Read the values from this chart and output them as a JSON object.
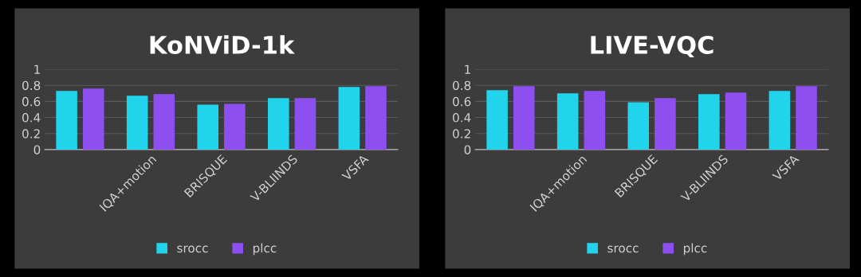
{
  "chart_data": [
    {
      "type": "bar",
      "title": "KoNViD-1k",
      "categories": [
        null,
        "IQA+motion",
        "BRISQUE",
        "V-BLIINDS",
        "VSFA"
      ],
      "series": [
        {
          "name": "srocc",
          "color": "#22d3ec",
          "values": [
            0.73,
            0.67,
            0.56,
            0.64,
            0.78
          ]
        },
        {
          "name": "plcc",
          "color": "#8e4ff0",
          "values": [
            0.76,
            0.69,
            0.57,
            0.64,
            0.79
          ]
        }
      ],
      "ylim": [
        0,
        1
      ],
      "yticks": [
        0,
        0.2,
        0.4,
        0.6,
        0.8,
        1
      ],
      "grid": "y",
      "legend": "bottom"
    },
    {
      "type": "bar",
      "title": "LIVE-VQC",
      "categories": [
        null,
        "IQA+motion",
        "BRISQUE",
        "V-BLIINDS",
        "VSFA"
      ],
      "series": [
        {
          "name": "srocc",
          "color": "#22d3ec",
          "values": [
            0.74,
            0.7,
            0.59,
            0.69,
            0.73
          ]
        },
        {
          "name": "plcc",
          "color": "#8e4ff0",
          "values": [
            0.79,
            0.73,
            0.64,
            0.71,
            0.79
          ]
        }
      ],
      "ylim": [
        0,
        1
      ],
      "yticks": [
        0,
        0.2,
        0.4,
        0.6,
        0.8,
        1
      ],
      "grid": "y",
      "legend": "bottom"
    }
  ]
}
